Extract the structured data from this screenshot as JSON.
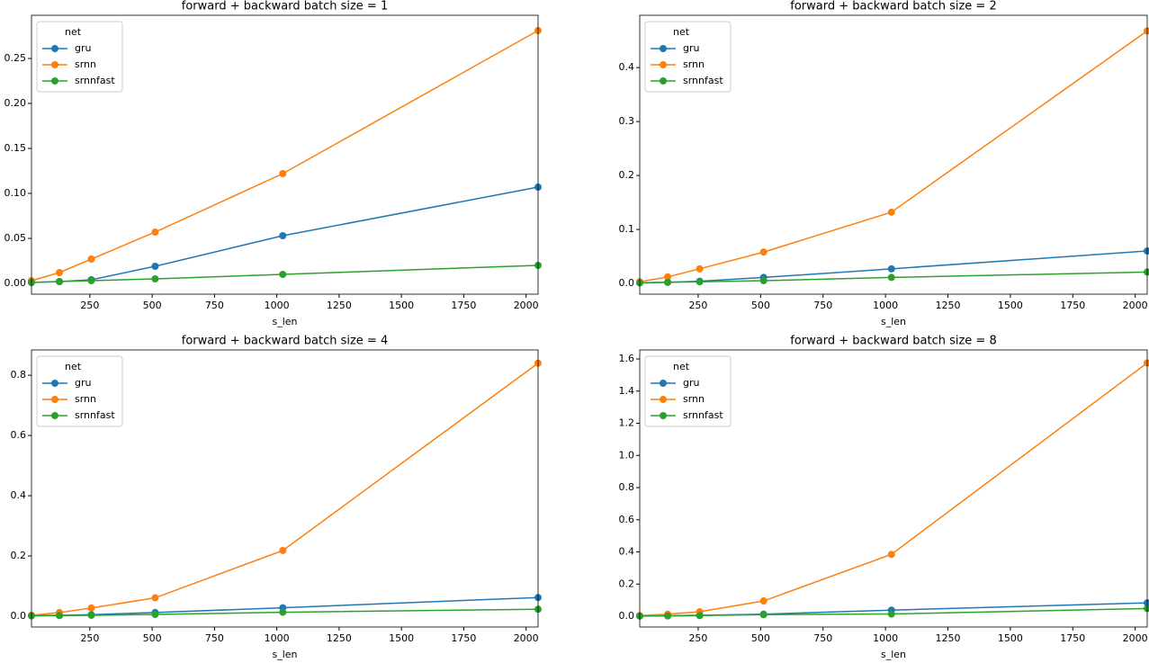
{
  "chart_data": [
    {
      "type": "line",
      "title": "forward + backward batch size = 1",
      "xlabel": "s_len",
      "legend_title": "net",
      "legend": "upper left",
      "x": [
        16,
        128,
        256,
        512,
        1024,
        2048
      ],
      "xlim": [
        16,
        2048
      ],
      "xticks": [
        250,
        500,
        750,
        1000,
        1250,
        1500,
        1750,
        2000
      ],
      "ylim": [
        -0.012,
        0.298
      ],
      "yticks": [
        {
          "value": 0,
          "label": "0.00"
        },
        0.05,
        {
          "value": 0.1,
          "label": "0.10"
        },
        0.15,
        {
          "value": 0.2,
          "label": "0.20"
        },
        0.25
      ],
      "series": [
        {
          "name": "gru",
          "color": "#1f77b4",
          "values": [
            0.001,
            0.002,
            0.004,
            0.019,
            0.053,
            0.107
          ]
        },
        {
          "name": "srnn",
          "color": "#ff7f0e",
          "values": [
            0.003,
            0.012,
            0.027,
            0.057,
            0.122,
            0.281
          ]
        },
        {
          "name": "srnnfast",
          "color": "#2ca02c",
          "values": [
            0.001,
            0.002,
            0.003,
            0.005,
            0.01,
            0.02
          ]
        }
      ]
    },
    {
      "type": "line",
      "title": "forward + backward batch size = 2",
      "xlabel": "s_len",
      "legend_title": "net",
      "legend": "upper left",
      "x": [
        16,
        128,
        256,
        512,
        1024,
        2048
      ],
      "xlim": [
        16,
        2048
      ],
      "xticks": [
        250,
        500,
        750,
        1000,
        1250,
        1500,
        1750,
        2000
      ],
      "ylim": [
        -0.02,
        0.497
      ],
      "yticks": [
        {
          "value": 0,
          "label": "0.0"
        },
        0.1,
        0.2,
        0.3,
        0.4
      ],
      "series": [
        {
          "name": "gru",
          "color": "#1f77b4",
          "values": [
            0.001,
            0.002,
            0.004,
            0.011,
            0.027,
            0.06
          ]
        },
        {
          "name": "srnn",
          "color": "#ff7f0e",
          "values": [
            0.003,
            0.012,
            0.027,
            0.058,
            0.132,
            0.468
          ]
        },
        {
          "name": "srnnfast",
          "color": "#2ca02c",
          "values": [
            0.001,
            0.002,
            0.003,
            0.005,
            0.011,
            0.021
          ]
        }
      ]
    },
    {
      "type": "line",
      "title": "forward + backward batch size = 4",
      "xlabel": "s_len",
      "legend_title": "net",
      "legend": "upper left",
      "x": [
        16,
        128,
        256,
        512,
        1024,
        2048
      ],
      "xlim": [
        16,
        2048
      ],
      "xticks": [
        250,
        500,
        750,
        1000,
        1250,
        1500,
        1750,
        2000
      ],
      "ylim": [
        -0.036,
        0.884
      ],
      "yticks": [
        {
          "value": 0,
          "label": "0.0"
        },
        0.2,
        0.4,
        0.6,
        0.8
      ],
      "series": [
        {
          "name": "gru",
          "color": "#1f77b4",
          "values": [
            0.002,
            0.003,
            0.005,
            0.012,
            0.028,
            0.062
          ]
        },
        {
          "name": "srnn",
          "color": "#ff7f0e",
          "values": [
            0.003,
            0.012,
            0.027,
            0.061,
            0.218,
            0.84
          ]
        },
        {
          "name": "srnnfast",
          "color": "#2ca02c",
          "values": [
            0.001,
            0.002,
            0.003,
            0.006,
            0.013,
            0.023
          ]
        }
      ]
    },
    {
      "type": "line",
      "title": "forward + backward batch size = 8",
      "xlabel": "s_len",
      "legend_title": "net",
      "legend": "upper left",
      "x": [
        16,
        128,
        256,
        512,
        1024,
        2048
      ],
      "xlim": [
        16,
        2048
      ],
      "xticks": [
        250,
        500,
        750,
        1000,
        1250,
        1500,
        1750,
        2000
      ],
      "ylim": [
        -0.067,
        1.656
      ],
      "yticks": [
        {
          "value": 0,
          "label": "0.0"
        },
        0.2,
        0.4,
        0.6,
        0.8,
        {
          "value": 1,
          "label": "1.0"
        },
        1.2,
        1.4,
        1.6
      ],
      "series": [
        {
          "name": "gru",
          "color": "#1f77b4",
          "values": [
            0.002,
            0.003,
            0.006,
            0.013,
            0.038,
            0.083
          ]
        },
        {
          "name": "srnn",
          "color": "#ff7f0e",
          "values": [
            0.004,
            0.013,
            0.028,
            0.095,
            0.385,
            1.575
          ]
        },
        {
          "name": "srnnfast",
          "color": "#2ca02c",
          "values": [
            0.001,
            0.002,
            0.004,
            0.01,
            0.014,
            0.048
          ]
        }
      ]
    }
  ]
}
